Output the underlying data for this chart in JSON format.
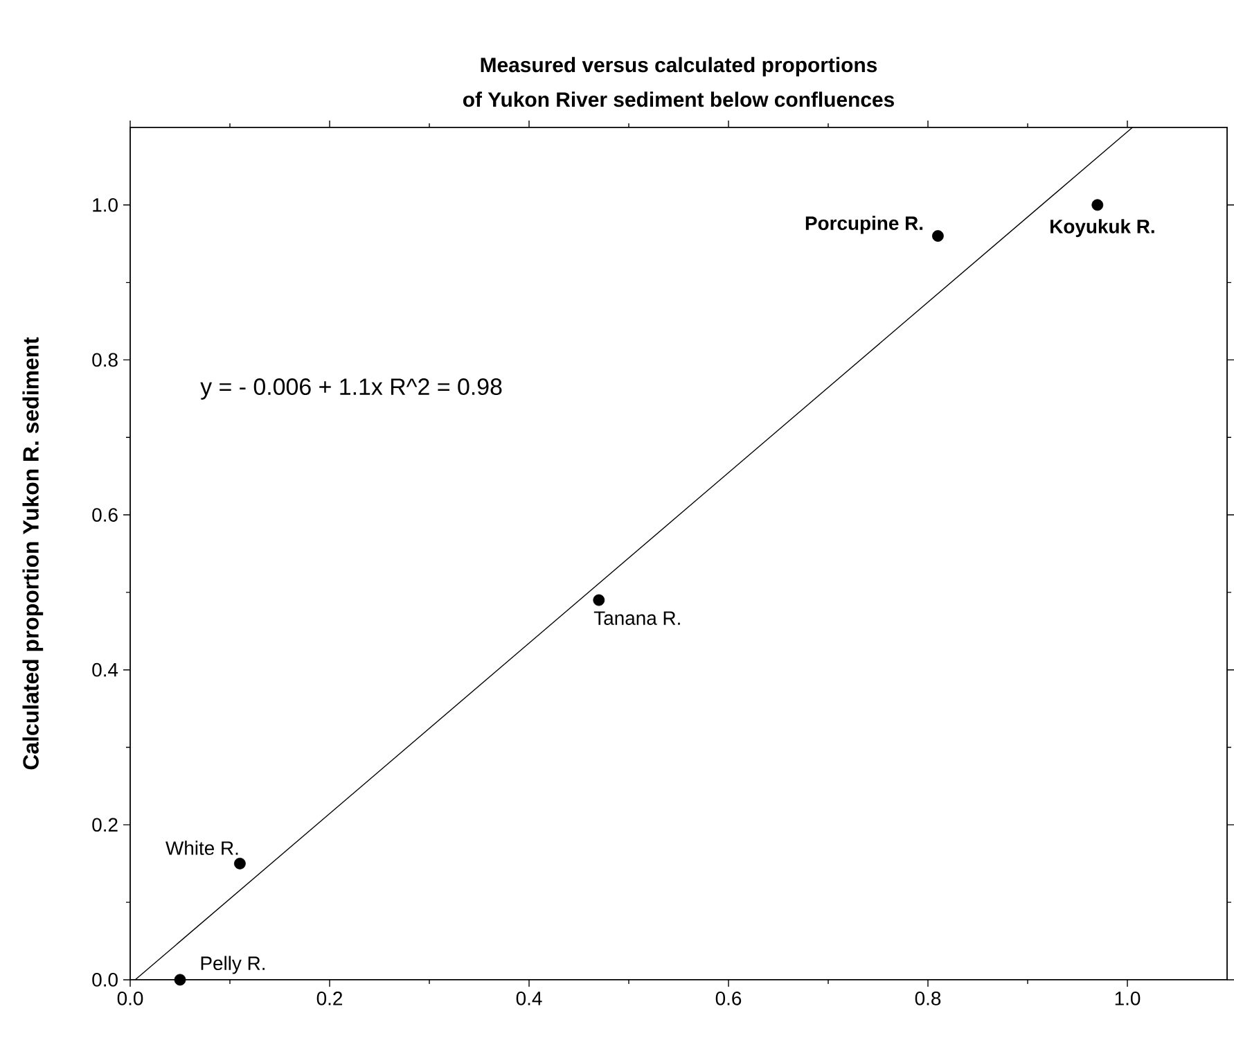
{
  "chart_data": {
    "type": "scatter",
    "title": "Measured versus calculated proportions",
    "subtitle": "of Yukon River sediment below confluences",
    "ylabel": "Calculated proportion Yukon R. sediment",
    "xlim": [
      0,
      1.1
    ],
    "ylim": [
      0,
      1.1
    ],
    "xticks": [
      {
        "value": 0,
        "label": "0.0"
      },
      {
        "value": 0.2,
        "label": "0.2"
      },
      {
        "value": 0.4,
        "label": "0.4"
      },
      {
        "value": 0.6,
        "label": "0.6"
      },
      {
        "value": 0.8,
        "label": "0.8"
      },
      {
        "value": 1,
        "label": "1.0"
      }
    ],
    "yticks": [
      {
        "value": 0,
        "label": "0.0"
      },
      {
        "value": 0.2,
        "label": "0.2"
      },
      {
        "value": 0.4,
        "label": "0.4"
      },
      {
        "value": 0.6,
        "label": "0.6"
      },
      {
        "value": 0.8,
        "label": "0.8"
      },
      {
        "value": 1,
        "label": "1.0"
      }
    ],
    "marker": "circle",
    "series": [
      {
        "color": "#000000",
        "x": [
          0.05,
          0.11,
          0.47,
          0.81,
          0.97
        ],
        "values": [
          0,
          0.15,
          0.49,
          0.96,
          1.0
        ]
      },
      {
        "type": "line",
        "marker": "none",
        "color": "#000000",
        "x": [
          0.005,
          1.005
        ],
        "values": [
          0,
          1.1
        ]
      }
    ],
    "annotations": [
      "y =  - 0.006 + 1.1x   R^2 = 0.98",
      {
        "text": "Pelly R.",
        "x": 0.05,
        "y": 0
      },
      {
        "text": "White R.",
        "x": 0.11,
        "y": 0.15
      },
      {
        "text": "Tanana R.",
        "x": 0.47,
        "y": 0.49
      },
      {
        "text": "**Porcupine R.**",
        "x": 0.81,
        "y": 0.96
      },
      {
        "text": "**Koyukuk R.**",
        "x": 0.97,
        "y": 1.0
      }
    ]
  }
}
